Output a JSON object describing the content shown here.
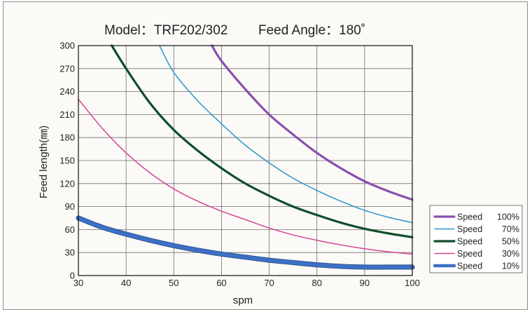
{
  "chart_data": {
    "type": "line",
    "title_left": "Model：TRF202/302",
    "title_right": "Feed Angle：180˚",
    "xlabel": "spm",
    "ylabel": "Feed length(㎜)",
    "xlim": [
      30,
      100
    ],
    "ylim": [
      0,
      300
    ],
    "x_ticks": [
      30,
      40,
      50,
      60,
      70,
      80,
      90,
      100
    ],
    "y_ticks": [
      0,
      30,
      60,
      90,
      120,
      150,
      180,
      210,
      240,
      270,
      300
    ],
    "grid": true,
    "legend_position": "bottom-right",
    "series": [
      {
        "name": "Speed 100%",
        "color": "#8a4fae",
        "x": [
          58,
          60,
          65,
          70,
          75,
          80,
          85,
          90,
          95,
          100
        ],
        "y": [
          300,
          280,
          243,
          210,
          184,
          160,
          140,
          123,
          110,
          99
        ]
      },
      {
        "name": "Speed 70%",
        "color": "#2a97cf",
        "x": [
          47,
          50,
          55,
          60,
          65,
          70,
          75,
          80,
          85,
          90,
          95,
          100
        ],
        "y": [
          300,
          265,
          228,
          198,
          170,
          147,
          127,
          111,
          97,
          85,
          76,
          69
        ]
      },
      {
        "name": "Speed 50%",
        "color": "#0f4f2a",
        "x": [
          37,
          40,
          45,
          50,
          55,
          60,
          65,
          70,
          75,
          80,
          85,
          90,
          95,
          100
        ],
        "y": [
          300,
          270,
          225,
          190,
          163,
          140,
          120,
          104,
          90,
          79,
          69,
          61,
          55,
          50
        ]
      },
      {
        "name": "Speed 30%",
        "color": "#d6439a",
        "x": [
          30,
          35,
          40,
          45,
          50,
          55,
          60,
          65,
          70,
          75,
          80,
          85,
          90,
          95,
          100
        ],
        "y": [
          230,
          192,
          160,
          134,
          113,
          97,
          84,
          73,
          62,
          53,
          46,
          40,
          35,
          31,
          28
        ]
      },
      {
        "name": "Speed 10%",
        "color": "#3d6fc4",
        "x": [
          30,
          35,
          40,
          45,
          50,
          55,
          60,
          65,
          70,
          75,
          80,
          85,
          90,
          95,
          100
        ],
        "y": [
          75,
          63,
          54,
          46,
          39,
          33,
          28,
          24,
          20,
          17,
          14,
          12,
          11,
          11,
          11
        ]
      }
    ]
  }
}
